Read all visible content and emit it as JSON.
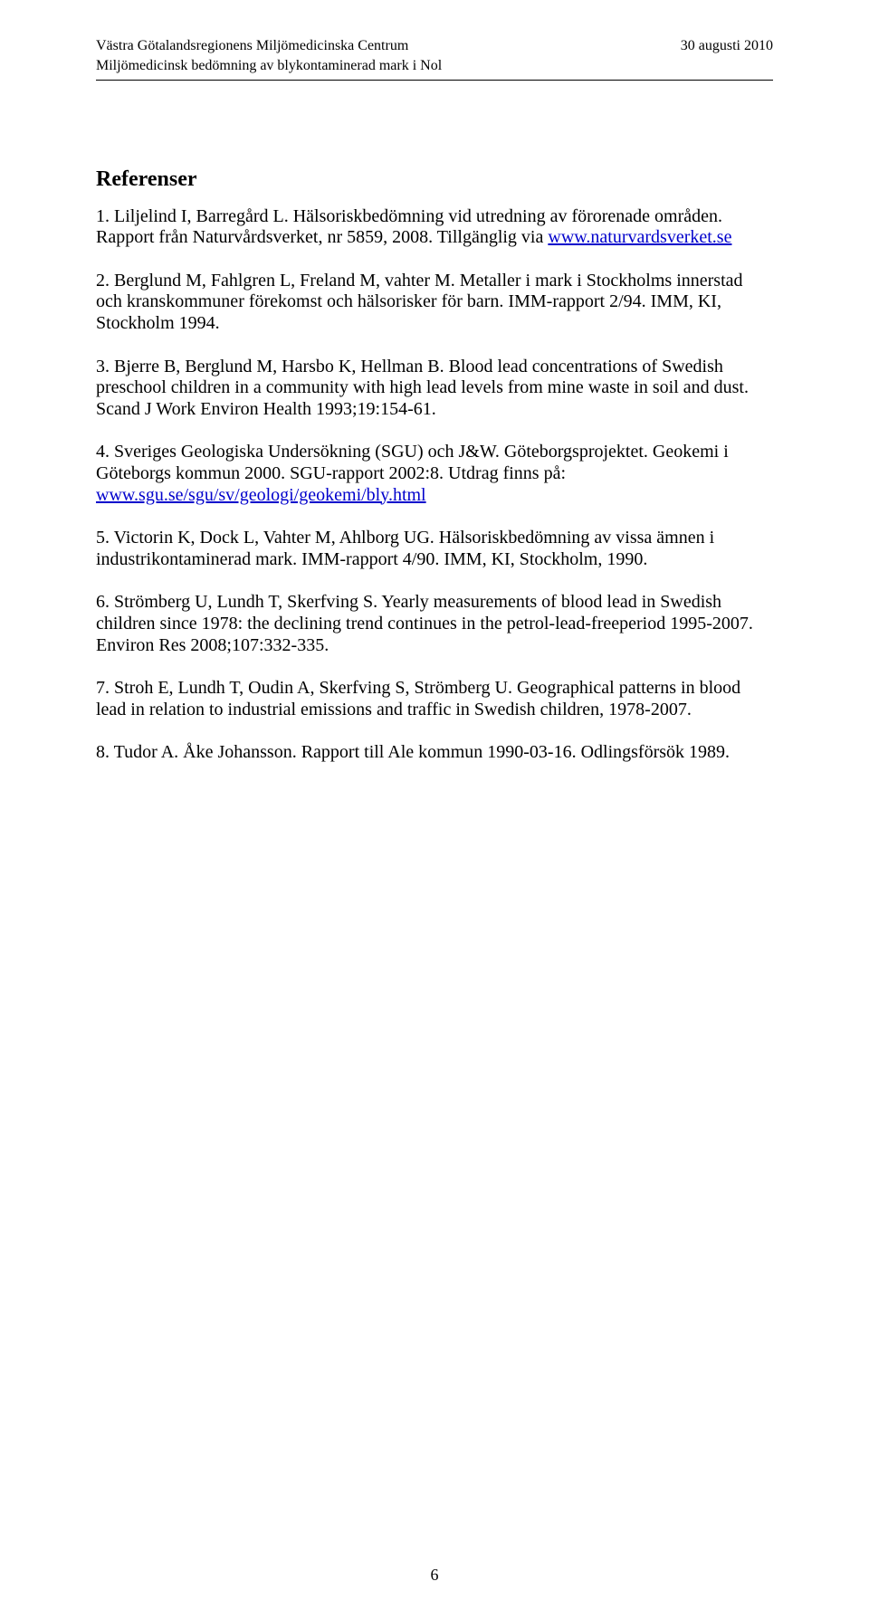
{
  "header": {
    "left_line1": "Västra Götalandsregionens Miljömedicinska Centrum",
    "right_line1": "30 augusti 2010",
    "left_line2": "Miljömedicinsk bedömning av blykontaminerad mark i Nol"
  },
  "section_title": "Referenser",
  "references": [
    {
      "pre": "1. Liljelind I, Barregård L. Hälsoriskbedömning vid utredning av förorenade områden. Rapport från Naturvårdsverket, nr 5859, 2008. Tillgänglig via ",
      "link_text": "www.naturvardsverket.se",
      "post": ""
    },
    {
      "pre": "2. Berglund M, Fahlgren L, Freland M, vahter M. Metaller i mark i Stockholms innerstad och kranskommuner förekomst och hälsorisker för barn. IMM-rapport 2/94. IMM, KI, Stockholm 1994.",
      "link_text": "",
      "post": ""
    },
    {
      "pre": "3. Bjerre B, Berglund M, Harsbo K, Hellman B. Blood lead concentrations of Swedish preschool children in a community with high lead levels from mine waste in soil and dust. Scand J Work Environ Health 1993;19:154-61.",
      "link_text": "",
      "post": ""
    },
    {
      "pre": "4. Sveriges Geologiska Undersökning (SGU) och J&W. Göteborgsprojektet. Geokemi i Göteborgs kommun 2000. SGU-rapport 2002:8. Utdrag finns på: ",
      "link_text": "www.sgu.se/sgu/sv/geologi/geokemi/bly.html",
      "post": ""
    },
    {
      "pre": "5. Victorin K, Dock L, Vahter M, Ahlborg UG. Hälsoriskbedömning av vissa ämnen i industrikontaminerad mark. IMM-rapport 4/90. IMM, KI, Stockholm, 1990.",
      "link_text": "",
      "post": ""
    },
    {
      "pre": "6. Strömberg U, Lundh T, Skerfving S. Yearly measurements of blood lead in Swedish children since 1978: the declining trend continues in the petrol-lead-freeperiod 1995-2007. Environ Res 2008;107:332-335.",
      "link_text": "",
      "post": ""
    },
    {
      "pre": "7. Stroh E, Lundh T, Oudin A, Skerfving S, Strömberg U. Geographical patterns in blood lead in relation to industrial emissions and traffic in Swedish children, 1978-2007.",
      "link_text": "",
      "post": ""
    },
    {
      "pre": " 8. Tudor A. Åke Johansson. Rapport till Ale kommun 1990-03-16. Odlingsförsök 1989.",
      "link_text": "",
      "post": ""
    }
  ],
  "page_number": "6"
}
